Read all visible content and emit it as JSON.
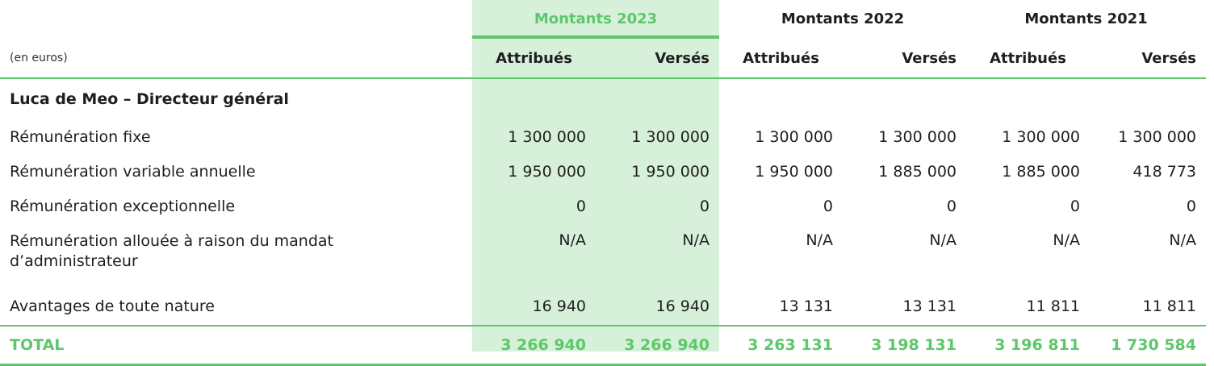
{
  "header": {
    "years": [
      "Montants 2023",
      "Montants 2022",
      "Montants 2021"
    ],
    "unit": "(en euros)",
    "sub_columns": [
      "Attribués",
      "Versés",
      "Attribués",
      "Versés",
      "Attribués",
      "Versés"
    ]
  },
  "section_title": "Luca de Meo – Directeur général",
  "rows": [
    {
      "label": "Rémunération fixe",
      "values": [
        "1 300 000",
        "1 300 000",
        "1 300 000",
        "1 300 000",
        "1 300 000",
        "1 300 000"
      ]
    },
    {
      "label": "Rémunération variable annuelle",
      "values": [
        "1 950 000",
        "1 950 000",
        "1 950 000",
        "1 885 000",
        "1 885 000",
        "418 773"
      ]
    },
    {
      "label": "Rémunération exceptionnelle",
      "values": [
        "0",
        "0",
        "0",
        "0",
        "0",
        "0"
      ]
    },
    {
      "label_line1": "Rémunération allouée à raison du mandat",
      "label_line2": "d’administrateur",
      "values": [
        "N/A",
        "N/A",
        "N/A",
        "N/A",
        "N/A",
        "N/A"
      ]
    },
    {
      "label": "Avantages de toute nature",
      "values": [
        "16 940",
        "16 940",
        "13 131",
        "13 131",
        "11 811",
        "11 811"
      ]
    }
  ],
  "total": {
    "label": "TOTAL",
    "values": [
      "3 266 940",
      "3 266 940",
      "3 263 131",
      "3 198 131",
      "3 196 811",
      "1 730 584"
    ]
  },
  "colors": {
    "accent": "#5ec76a",
    "highlight_bg": "#d6f0da"
  }
}
